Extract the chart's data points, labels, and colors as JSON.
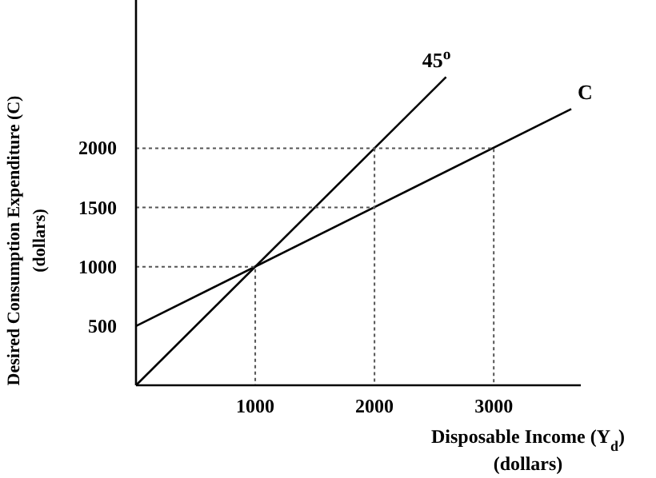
{
  "chart_data": {
    "type": "line",
    "xlabel": "Disposable Income (Y$_{d}$)\n(dollars)",
    "ylabel": "Desired Consumption Expenditure (C)\n(dollars)",
    "xlim": [
      0,
      3730
    ],
    "ylim": [
      0,
      3250
    ],
    "xticks": [
      1000,
      2000,
      3000
    ],
    "yticks": [
      500,
      1000,
      1500,
      2000
    ],
    "grid": false,
    "marker": "none",
    "series": [
      {
        "name": "45$^{o}$",
        "color": "#000000",
        "x": [
          0,
          2600
        ],
        "values": [
          0,
          2600
        ]
      },
      {
        "name": "C",
        "color": "#000000",
        "x": [
          0,
          3650
        ],
        "values": [
          500,
          2330
        ]
      },
      {
        "color": "#555555",
        "line_style": "dotted",
        "x": [
          0,
          1000,
          1000
        ],
        "values": [
          1000,
          1000,
          0
        ]
      },
      {
        "color": "#555555",
        "line_style": "dotted",
        "x": [
          0,
          2000
        ],
        "values": [
          1500,
          1500
        ]
      },
      {
        "color": "#555555",
        "line_style": "dotted",
        "x": [
          2000,
          2000
        ],
        "values": [
          2000,
          0
        ]
      },
      {
        "color": "#555555",
        "line_style": "dotted",
        "x": [
          0,
          3000,
          3000
        ],
        "values": [
          2000,
          2000,
          0
        ]
      }
    ]
  }
}
